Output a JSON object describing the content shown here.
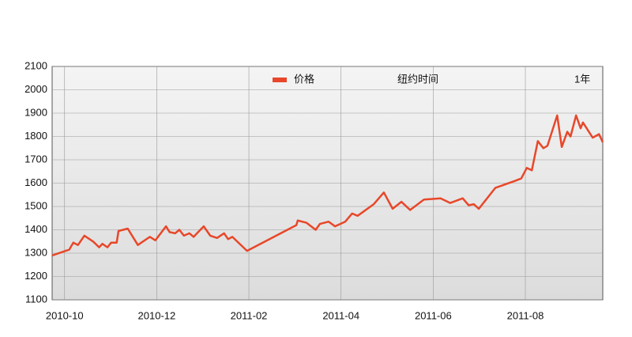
{
  "chart_data": {
    "type": "line",
    "annotations": [
      "纽约时间",
      "1年"
    ],
    "x": [
      -0.27,
      0.1,
      0.19,
      0.29,
      0.43,
      0.62,
      0.75,
      0.82,
      0.93,
      1.01,
      1.13,
      1.17,
      1.37,
      1.59,
      1.85,
      1.97,
      2.2,
      2.28,
      2.4,
      2.49,
      2.59,
      2.71,
      2.8,
      3.02,
      3.16,
      3.31,
      3.46,
      3.55,
      3.64,
      3.96,
      5.03,
      5.06,
      5.25,
      5.45,
      5.54,
      5.73,
      5.87,
      6.09,
      6.24,
      6.36,
      6.71,
      6.93,
      7.12,
      7.31,
      7.5,
      7.8,
      8.16,
      8.37,
      8.64,
      8.77,
      8.88,
      8.99,
      9.35,
      9.78,
      9.91,
      10.03,
      10.14,
      10.27,
      10.39,
      10.48,
      10.69,
      10.79,
      10.91,
      10.98,
      11.1,
      11.2,
      11.25,
      11.46,
      11.6,
      11.68
    ],
    "series": [
      {
        "name": "价格",
        "color": "#e8472a",
        "values": [
          1290,
          1315,
          1345,
          1335,
          1375,
          1350,
          1325,
          1340,
          1325,
          1345,
          1345,
          1395,
          1405,
          1335,
          1370,
          1355,
          1415,
          1390,
          1385,
          1400,
          1375,
          1385,
          1370,
          1415,
          1375,
          1365,
          1385,
          1360,
          1370,
          1310,
          1420,
          1440,
          1430,
          1400,
          1425,
          1435,
          1415,
          1435,
          1470,
          1460,
          1510,
          1560,
          1490,
          1520,
          1485,
          1530,
          1535,
          1515,
          1535,
          1505,
          1510,
          1490,
          1580,
          1610,
          1620,
          1665,
          1655,
          1780,
          1750,
          1760,
          1890,
          1755,
          1820,
          1800,
          1890,
          1835,
          1860,
          1795,
          1810,
          1775
        ]
      }
    ],
    "xlim": [
      -0.27,
      11.68
    ],
    "xticks": [
      {
        "value": 0,
        "label": "2010-10"
      },
      {
        "value": 2,
        "label": "2010-12"
      },
      {
        "value": 4,
        "label": "2011-02"
      },
      {
        "value": 6,
        "label": "2011-04"
      },
      {
        "value": 8,
        "label": "2011-06"
      },
      {
        "value": 10,
        "label": "2011-08"
      }
    ],
    "ylim": [
      1100,
      2100
    ],
    "yticks": [
      1100,
      1200,
      1300,
      1400,
      1500,
      1600,
      1700,
      1800,
      1900,
      2000,
      2100
    ],
    "grid": true
  }
}
